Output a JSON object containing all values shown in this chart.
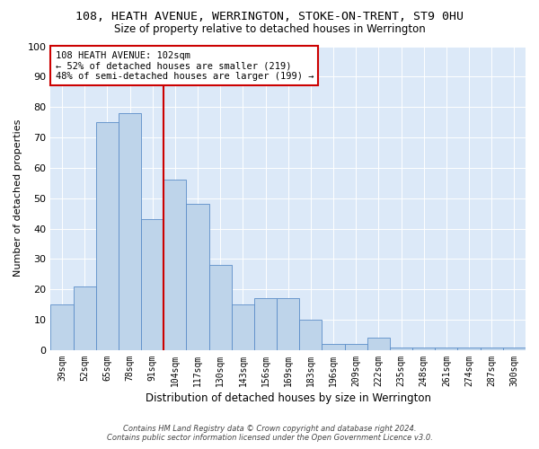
{
  "title": "108, HEATH AVENUE, WERRINGTON, STOKE-ON-TRENT, ST9 0HU",
  "subtitle": "Size of property relative to detached houses in Werrington",
  "xlabel": "Distribution of detached houses by size in Werrington",
  "ylabel": "Number of detached properties",
  "bar_labels": [
    "39sqm",
    "52sqm",
    "65sqm",
    "78sqm",
    "91sqm",
    "104sqm",
    "117sqm",
    "130sqm",
    "143sqm",
    "156sqm",
    "169sqm",
    "183sqm",
    "196sqm",
    "209sqm",
    "222sqm",
    "235sqm",
    "248sqm",
    "261sqm",
    "274sqm",
    "287sqm",
    "300sqm"
  ],
  "bar_values": [
    15,
    21,
    75,
    78,
    43,
    56,
    48,
    28,
    15,
    17,
    17,
    10,
    2,
    2,
    4,
    1,
    1,
    1,
    1,
    1,
    1
  ],
  "bar_color": "#bed4ea",
  "bar_edge_color": "#5b8dc8",
  "vline_color": "#cc0000",
  "annotation_title": "108 HEATH AVENUE: 102sqm",
  "annotation_line1": "← 52% of detached houses are smaller (219)",
  "annotation_line2": "48% of semi-detached houses are larger (199) →",
  "annotation_box_color": "#cc0000",
  "ylim": [
    0,
    100
  ],
  "yticks": [
    0,
    10,
    20,
    30,
    40,
    50,
    60,
    70,
    80,
    90,
    100
  ],
  "bg_color": "#dce9f8",
  "footer1": "Contains HM Land Registry data © Crown copyright and database right 2024.",
  "footer2": "Contains public sector information licensed under the Open Government Licence v3.0."
}
